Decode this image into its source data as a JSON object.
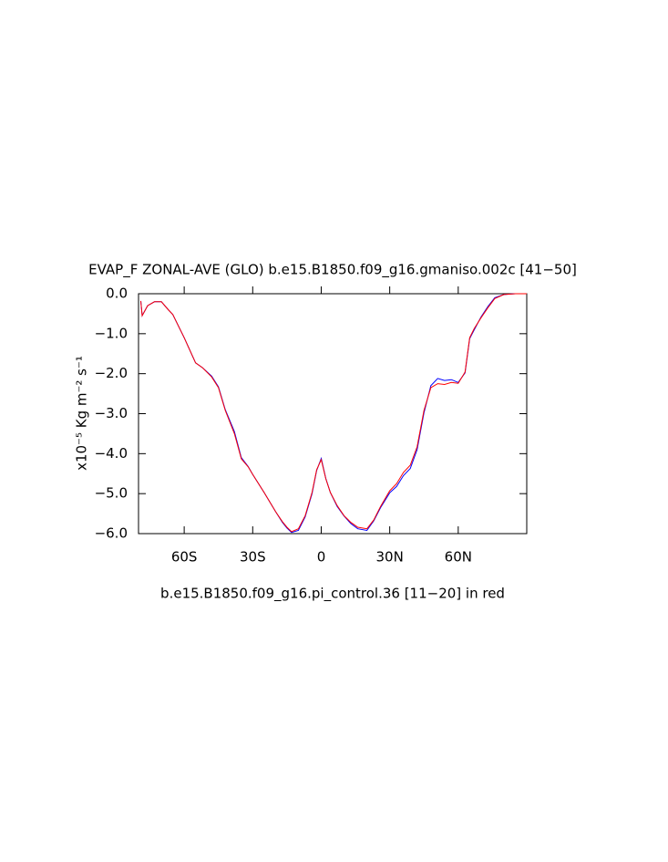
{
  "chart_data": {
    "type": "line",
    "title": "EVAP_F ZONAL-AVE (GLO) b.e15.B1850.f09_g16.gmaniso.002c [41−50]",
    "subtitle": "b.e15.B1850.f09_g16.pi_control.36 [11−20] in red",
    "y_label": "x10⁻⁵ Kg m⁻² s⁻¹",
    "xlim": [
      -80,
      90
    ],
    "ylim": [
      -6,
      0
    ],
    "xticks": [
      {
        "value": -60,
        "label": "60S"
      },
      {
        "value": -30,
        "label": "30S"
      },
      0,
      {
        "value": 30,
        "label": "30N"
      },
      {
        "value": 60,
        "label": "60N"
      }
    ],
    "yticks": [
      {
        "value": 0,
        "label": "0.0"
      },
      {
        "value": -1,
        "label": "−1.0"
      },
      {
        "value": -2,
        "label": "−2.0"
      },
      {
        "value": -3,
        "label": "−3.0"
      },
      {
        "value": -4,
        "label": "−4.0"
      },
      {
        "value": -5,
        "label": "−5.0"
      },
      {
        "value": -6,
        "label": "−6.0"
      }
    ],
    "x": [
      -79,
      -78.4,
      -76,
      -73,
      -70,
      -67,
      -65,
      -60,
      -55,
      -52,
      -48,
      -45,
      -42,
      -38,
      -35,
      -32,
      -30,
      -25,
      -20,
      -17,
      -15,
      -13,
      -10,
      -7,
      -4,
      -2,
      0,
      2,
      4,
      7,
      10,
      13,
      16,
      20,
      23,
      26,
      30,
      33,
      36,
      39,
      42,
      45,
      48,
      51,
      54,
      57,
      60,
      63,
      65,
      67,
      70,
      73,
      76,
      80,
      85,
      90
    ],
    "series": [
      {
        "name": "b.e15.B1850.f09_g16.gmaniso.002c",
        "color": "#0000ff",
        "values": [
          -0.18,
          -0.55,
          -0.3,
          -0.2,
          -0.2,
          -0.4,
          -0.52,
          -1.1,
          -1.73,
          -1.85,
          -2.06,
          -2.33,
          -2.9,
          -3.45,
          -4.1,
          -4.32,
          -4.52,
          -4.97,
          -5.45,
          -5.72,
          -5.86,
          -5.97,
          -5.92,
          -5.58,
          -5.0,
          -4.42,
          -4.12,
          -4.62,
          -4.97,
          -5.32,
          -5.56,
          -5.75,
          -5.88,
          -5.92,
          -5.68,
          -5.35,
          -4.98,
          -4.82,
          -4.55,
          -4.37,
          -3.9,
          -2.98,
          -2.3,
          -2.12,
          -2.17,
          -2.15,
          -2.22,
          -1.98,
          -1.12,
          -0.9,
          -0.58,
          -0.32,
          -0.1,
          -0.02,
          0,
          0
        ]
      },
      {
        "name": "b.e15.B1850.f09_g16.pi_control.36",
        "color": "#ff0000",
        "values": [
          -0.18,
          -0.55,
          -0.3,
          -0.2,
          -0.2,
          -0.4,
          -0.52,
          -1.1,
          -1.73,
          -1.85,
          -2.08,
          -2.35,
          -2.92,
          -3.5,
          -4.13,
          -4.33,
          -4.52,
          -4.97,
          -5.45,
          -5.7,
          -5.84,
          -5.95,
          -5.88,
          -5.55,
          -4.97,
          -4.4,
          -4.15,
          -4.63,
          -4.97,
          -5.3,
          -5.55,
          -5.72,
          -5.84,
          -5.88,
          -5.66,
          -5.32,
          -4.93,
          -4.75,
          -4.47,
          -4.29,
          -3.83,
          -2.92,
          -2.35,
          -2.25,
          -2.27,
          -2.22,
          -2.24,
          -1.96,
          -1.1,
          -0.87,
          -0.6,
          -0.35,
          -0.12,
          -0.02,
          0,
          0
        ]
      }
    ]
  }
}
